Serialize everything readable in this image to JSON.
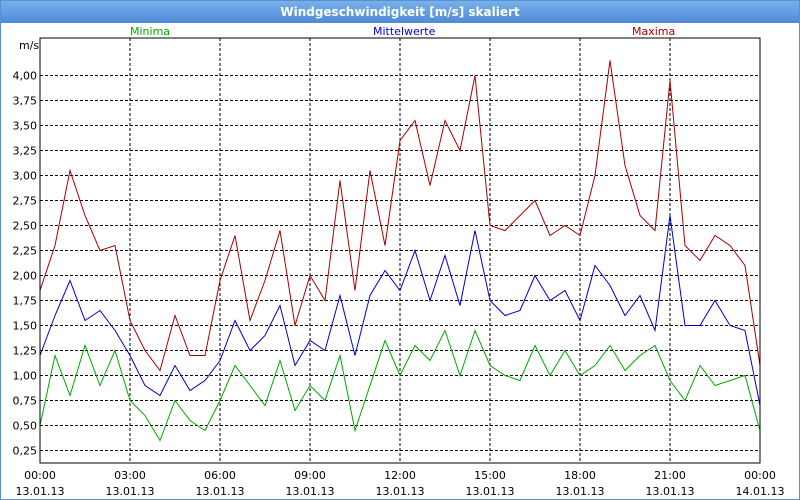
{
  "window": {
    "title": "Windgeschwindigkeit [m/s] skaliert"
  },
  "chart_data": {
    "type": "line",
    "title": "Windgeschwindigkeit [m/s] skaliert",
    "ylabel": "m/s",
    "ylim": [
      0.125,
      4.375
    ],
    "yticks": [
      4.0,
      3.75,
      3.5,
      3.25,
      3.0,
      2.75,
      2.5,
      2.25,
      2.0,
      1.75,
      1.5,
      1.25,
      1.0,
      0.75,
      0.5,
      0.25
    ],
    "ytick_labels": [
      "4,00",
      "3,75",
      "3,50",
      "3,25",
      "3,00",
      "2,75",
      "2,50",
      "2,25",
      "2,00",
      "1,75",
      "1,50",
      "1,25",
      "1,00",
      "0,75",
      "0,50",
      "0,25"
    ],
    "xlim_hours": [
      0,
      24
    ],
    "xtick_hours": [
      0,
      3,
      6,
      9,
      12,
      15,
      18,
      21,
      24
    ],
    "xtick_time_labels": [
      "00:00",
      "03:00",
      "06:00",
      "09:00",
      "12:00",
      "15:00",
      "18:00",
      "21:00",
      "00:00"
    ],
    "xtick_date_labels": [
      "13.01.13",
      "13.01.13",
      "13.01.13",
      "13.01.13",
      "13.01.13",
      "13.01.13",
      "13.01.13",
      "13.01.13",
      "14.01.13"
    ],
    "grid": true,
    "legend": "top",
    "series": [
      {
        "name": "Minima",
        "color": "#00aa00",
        "x": [
          0,
          0.5,
          1,
          1.5,
          2,
          2.5,
          3,
          3.5,
          4,
          4.5,
          5,
          5.5,
          6,
          6.5,
          7,
          7.5,
          8,
          8.5,
          9,
          9.5,
          10,
          10.5,
          11,
          11.5,
          12,
          12.5,
          13,
          13.5,
          14,
          14.5,
          15,
          15.5,
          16,
          16.5,
          17,
          17.5,
          18,
          18.5,
          19,
          19.5,
          20,
          20.5,
          21,
          21.5,
          22,
          22.5,
          23,
          23.5,
          24
        ],
        "y": [
          0.5,
          1.2,
          0.8,
          1.3,
          0.9,
          1.25,
          0.75,
          0.6,
          0.35,
          0.75,
          0.55,
          0.45,
          0.75,
          1.1,
          0.9,
          0.7,
          1.15,
          0.65,
          0.9,
          0.75,
          1.2,
          0.45,
          0.9,
          1.35,
          1.0,
          1.3,
          1.15,
          1.45,
          1.0,
          1.45,
          1.1,
          1.0,
          0.95,
          1.3,
          1.0,
          1.25,
          1.0,
          1.1,
          1.3,
          1.05,
          1.2,
          1.3,
          0.95,
          0.75,
          1.1,
          0.9,
          0.95,
          1.0,
          0.45
        ]
      },
      {
        "name": "Mittelwerte",
        "color": "#0000cc",
        "x": [
          0,
          0.5,
          1,
          1.5,
          2,
          2.5,
          3,
          3.5,
          4,
          4.5,
          5,
          5.5,
          6,
          6.5,
          7,
          7.5,
          8,
          8.5,
          9,
          9.5,
          10,
          10.5,
          11,
          11.5,
          12,
          12.5,
          13,
          13.5,
          14,
          14.5,
          15,
          15.5,
          16,
          16.5,
          17,
          17.5,
          18,
          18.5,
          19,
          19.5,
          20,
          20.5,
          21,
          21.5,
          22,
          22.5,
          23,
          23.5,
          24
        ],
        "y": [
          1.2,
          1.6,
          1.95,
          1.55,
          1.65,
          1.45,
          1.2,
          0.9,
          0.8,
          1.1,
          0.85,
          0.95,
          1.15,
          1.55,
          1.25,
          1.4,
          1.7,
          1.1,
          1.35,
          1.25,
          1.8,
          1.2,
          1.8,
          2.05,
          1.85,
          2.25,
          1.75,
          2.2,
          1.7,
          2.45,
          1.75,
          1.6,
          1.65,
          2.0,
          1.75,
          1.85,
          1.55,
          2.1,
          1.9,
          1.6,
          1.8,
          1.45,
          2.6,
          1.5,
          1.5,
          1.75,
          1.5,
          1.45,
          0.7
        ]
      },
      {
        "name": "Maxima",
        "color": "#aa0000",
        "x": [
          0,
          0.5,
          1,
          1.5,
          2,
          2.5,
          3,
          3.5,
          4,
          4.5,
          5,
          5.5,
          6,
          6.5,
          7,
          7.5,
          8,
          8.5,
          9,
          9.5,
          10,
          10.5,
          11,
          11.5,
          12,
          12.5,
          13,
          13.5,
          14,
          14.5,
          15,
          15.5,
          16,
          16.5,
          17,
          17.5,
          18,
          18.5,
          19,
          19.5,
          20,
          20.5,
          21,
          21.5,
          22,
          22.5,
          23,
          23.5,
          24
        ],
        "y": [
          1.85,
          2.3,
          3.05,
          2.6,
          2.25,
          2.3,
          1.55,
          1.25,
          1.05,
          1.6,
          1.2,
          1.2,
          1.95,
          2.4,
          1.55,
          1.95,
          2.45,
          1.5,
          2.0,
          1.75,
          2.95,
          1.85,
          3.05,
          2.3,
          3.35,
          3.55,
          2.9,
          3.55,
          3.25,
          4.0,
          2.5,
          2.45,
          2.6,
          2.75,
          2.4,
          2.5,
          2.4,
          3.0,
          4.15,
          3.1,
          2.6,
          2.45,
          3.95,
          2.3,
          2.15,
          2.4,
          2.3,
          2.1,
          1.1
        ]
      }
    ]
  }
}
